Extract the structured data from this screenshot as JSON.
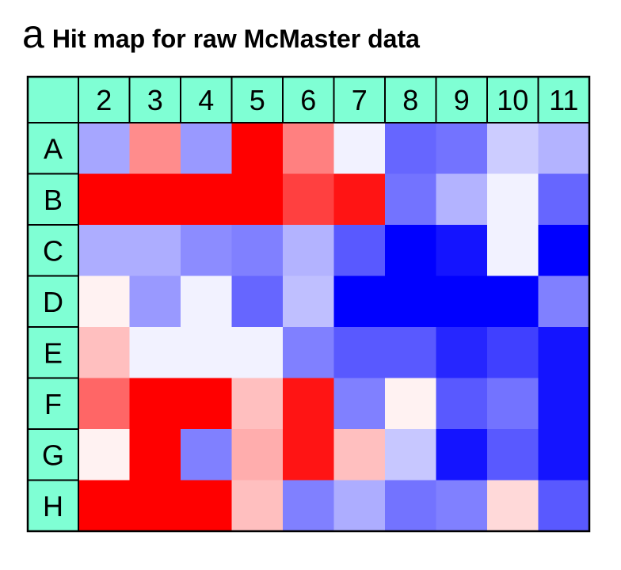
{
  "figure": {
    "panel_label": "a",
    "title": "Hit map for raw McMaster data"
  },
  "chart_data": {
    "type": "heatmap",
    "title": "Hit map for raw McMaster data",
    "columns": [
      "2",
      "3",
      "4",
      "5",
      "6",
      "7",
      "8",
      "9",
      "10",
      "11"
    ],
    "rows": [
      "A",
      "B",
      "C",
      "D",
      "E",
      "F",
      "G",
      "H"
    ],
    "colormap": {
      "low": "#0000ff",
      "mid": "#ffffff",
      "high": "#ff0000"
    },
    "header_color": "#7fffd4",
    "values": [
      [
        -0.35,
        0.45,
        -0.4,
        1.0,
        0.5,
        -0.05,
        -0.6,
        -0.55,
        -0.2,
        -0.3
      ],
      [
        1.0,
        1.0,
        1.0,
        1.0,
        0.75,
        0.92,
        -0.55,
        -0.3,
        -0.05,
        -0.6
      ],
      [
        -0.32,
        -0.32,
        -0.45,
        -0.5,
        -0.3,
        -0.65,
        -1.0,
        -0.92,
        -0.05,
        -1.0
      ],
      [
        0.05,
        -0.4,
        -0.05,
        -0.6,
        -0.25,
        -1.0,
        -1.0,
        -1.0,
        -1.0,
        -0.5
      ],
      [
        0.25,
        -0.05,
        -0.05,
        -0.05,
        -0.5,
        -0.65,
        -0.65,
        -0.85,
        -0.75,
        -0.92
      ],
      [
        0.6,
        1.0,
        1.0,
        0.25,
        0.92,
        -0.5,
        0.05,
        -0.65,
        -0.55,
        -0.92
      ],
      [
        0.05,
        1.0,
        -0.5,
        0.32,
        0.92,
        0.25,
        -0.22,
        -0.92,
        -0.65,
        -0.92
      ],
      [
        1.0,
        1.0,
        1.0,
        0.25,
        -0.5,
        -0.32,
        -0.55,
        -0.5,
        0.15,
        -0.65
      ]
    ]
  }
}
